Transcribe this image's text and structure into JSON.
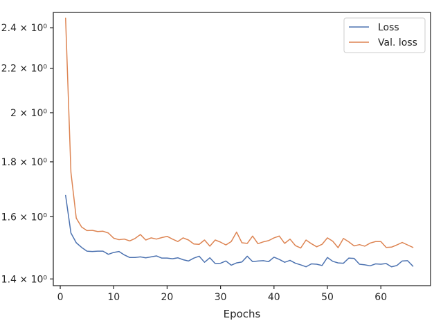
{
  "chart_data": {
    "type": "line",
    "title": "",
    "xlabel": "Epochs",
    "ylabel": "",
    "yscale": "log",
    "grid": false,
    "legend_position": "top-right",
    "xlim": [
      -1.3,
      69.3
    ],
    "ylim": [
      1.38,
      2.48
    ],
    "x_ticks": [
      0,
      10,
      20,
      30,
      40,
      50,
      60
    ],
    "y_ticks": [
      {
        "value": 1.4,
        "label": "1.4 × 10⁰"
      },
      {
        "value": 1.6,
        "label": "1.6 × 10⁰"
      },
      {
        "value": 1.8,
        "label": "1.8 × 10⁰"
      },
      {
        "value": 2.0,
        "label": "2 × 10⁰"
      },
      {
        "value": 2.2,
        "label": "2.2 × 10⁰"
      },
      {
        "value": 2.4,
        "label": "2.4 × 10⁰"
      }
    ],
    "x": [
      1,
      2,
      3,
      4,
      5,
      6,
      7,
      8,
      9,
      10,
      11,
      12,
      13,
      14,
      15,
      16,
      17,
      18,
      19,
      20,
      21,
      22,
      23,
      24,
      25,
      26,
      27,
      28,
      29,
      30,
      31,
      32,
      33,
      34,
      35,
      36,
      37,
      38,
      39,
      40,
      41,
      42,
      43,
      44,
      45,
      46,
      47,
      48,
      49,
      50,
      51,
      52,
      53,
      54,
      55,
      56,
      57,
      58,
      59,
      60,
      61,
      62,
      63,
      64,
      65,
      66
    ],
    "series": [
      {
        "name": "Loss",
        "color": "#4c72b0",
        "values": [
          1.675,
          1.545,
          1.513,
          1.498,
          1.486,
          1.485,
          1.486,
          1.486,
          1.476,
          1.482,
          1.485,
          1.474,
          1.466,
          1.466,
          1.468,
          1.465,
          1.468,
          1.471,
          1.464,
          1.464,
          1.462,
          1.465,
          1.459,
          1.455,
          1.464,
          1.47,
          1.451,
          1.465,
          1.447,
          1.448,
          1.455,
          1.442,
          1.449,
          1.452,
          1.47,
          1.453,
          1.455,
          1.456,
          1.453,
          1.467,
          1.46,
          1.451,
          1.457,
          1.448,
          1.443,
          1.437,
          1.446,
          1.445,
          1.441,
          1.466,
          1.454,
          1.449,
          1.448,
          1.464,
          1.463,
          1.445,
          1.443,
          1.44,
          1.446,
          1.445,
          1.447,
          1.437,
          1.441,
          1.455,
          1.456,
          1.439
        ]
      },
      {
        "name": "Val. loss",
        "color": "#dd8452",
        "values": [
          2.45,
          1.76,
          1.595,
          1.565,
          1.553,
          1.554,
          1.55,
          1.551,
          1.545,
          1.528,
          1.523,
          1.525,
          1.519,
          1.527,
          1.54,
          1.522,
          1.529,
          1.525,
          1.53,
          1.534,
          1.525,
          1.517,
          1.529,
          1.522,
          1.509,
          1.508,
          1.522,
          1.502,
          1.522,
          1.515,
          1.506,
          1.517,
          1.548,
          1.513,
          1.511,
          1.535,
          1.51,
          1.516,
          1.52,
          1.529,
          1.535,
          1.511,
          1.525,
          1.504,
          1.496,
          1.522,
          1.51,
          1.5,
          1.508,
          1.529,
          1.518,
          1.497,
          1.527,
          1.516,
          1.503,
          1.507,
          1.502,
          1.512,
          1.517,
          1.517,
          1.498,
          1.499,
          1.506,
          1.514,
          1.506,
          1.498
        ]
      }
    ]
  }
}
